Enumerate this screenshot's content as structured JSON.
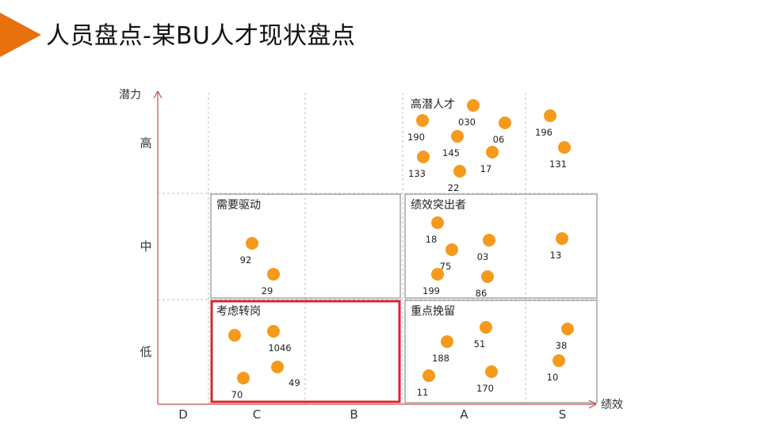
{
  "title": "人员盘点-某BU人才现状盘点",
  "colors": {
    "accent": "#E8700E",
    "dot": "#F59A1B",
    "highlight": "#D9262C",
    "axis": "#C0504D",
    "grid": "#BFBFBF"
  },
  "chart_data": {
    "type": "scatter",
    "title": "人员盘点-某BU人才现状盘点",
    "xlabel": "绩效",
    "ylabel": "潜力",
    "x_categories": [
      "D",
      "C",
      "B",
      "A",
      "S"
    ],
    "y_categories": [
      "低",
      "中",
      "高"
    ],
    "regions": [
      {
        "name": "高潜人才",
        "x": [
          "A",
          "S"
        ],
        "y": "高",
        "boxed": false,
        "highlight": false
      },
      {
        "name": "需要驱动",
        "x": [
          "C",
          "B"
        ],
        "y": "中",
        "boxed": true,
        "highlight": false
      },
      {
        "name": "绩效突出者",
        "x": [
          "A",
          "S"
        ],
        "y": "中",
        "boxed": true,
        "highlight": false
      },
      {
        "name": "考虑转岗",
        "x": [
          "C",
          "B"
        ],
        "y": "低",
        "boxed": true,
        "highlight": true
      },
      {
        "name": "重点挽留",
        "x": [
          "A",
          "S"
        ],
        "y": "低",
        "boxed": true,
        "highlight": false
      }
    ],
    "points": [
      {
        "label": "030",
        "x": "A",
        "y": "高"
      },
      {
        "label": "190",
        "x": "A",
        "y": "高"
      },
      {
        "label": "06",
        "x": "A",
        "y": "高"
      },
      {
        "label": "145",
        "x": "A",
        "y": "高"
      },
      {
        "label": "17",
        "x": "A",
        "y": "高"
      },
      {
        "label": "133",
        "x": "A",
        "y": "高"
      },
      {
        "label": "22",
        "x": "A",
        "y": "高"
      },
      {
        "label": "196",
        "x": "S",
        "y": "高"
      },
      {
        "label": "131",
        "x": "S",
        "y": "高"
      },
      {
        "label": "92",
        "x": "C",
        "y": "中"
      },
      {
        "label": "29",
        "x": "C",
        "y": "中"
      },
      {
        "label": "18",
        "x": "A",
        "y": "中"
      },
      {
        "label": "03",
        "x": "A",
        "y": "中"
      },
      {
        "label": "75",
        "x": "A",
        "y": "中"
      },
      {
        "label": "199",
        "x": "A",
        "y": "中"
      },
      {
        "label": "86",
        "x": "A",
        "y": "中"
      },
      {
        "label": "13",
        "x": "S",
        "y": "中"
      },
      {
        "label": "",
        "x": "C",
        "y": "低"
      },
      {
        "label": "1046",
        "x": "C",
        "y": "低"
      },
      {
        "label": "49",
        "x": "C",
        "y": "低"
      },
      {
        "label": "70",
        "x": "C",
        "y": "低"
      },
      {
        "label": "51",
        "x": "A",
        "y": "低"
      },
      {
        "label": "188",
        "x": "A",
        "y": "低"
      },
      {
        "label": "11",
        "x": "A",
        "y": "低"
      },
      {
        "label": "170",
        "x": "A",
        "y": "低"
      },
      {
        "label": "38",
        "x": "S",
        "y": "低"
      },
      {
        "label": "10",
        "x": "S",
        "y": "低"
      }
    ]
  }
}
